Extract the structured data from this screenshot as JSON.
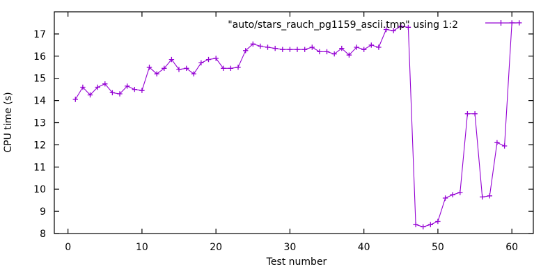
{
  "figure": {
    "background": "#ffffff",
    "border_color": "#000000",
    "text_color": "#000000",
    "accent_color": "#9400d3"
  },
  "chart_data": {
    "type": "line",
    "title": "\"auto/stars_rauch_pg1159_ascii.tmp\" using 1:2",
    "xlabel": "Test number",
    "ylabel": "CPU time (s)",
    "legend_position": "top-right-inside",
    "grid": false,
    "marker": "plus",
    "line_color": "#9400d3",
    "xlim": [
      -1.85,
      62.9
    ],
    "ylim": [
      8,
      18
    ],
    "x_ticks": [
      0,
      10,
      20,
      30,
      40,
      50,
      60
    ],
    "y_ticks": [
      8,
      9,
      10,
      11,
      12,
      13,
      14,
      15,
      16,
      17
    ],
    "x": [
      1,
      2,
      3,
      4,
      5,
      6,
      7,
      8,
      9,
      10,
      11,
      12,
      13,
      14,
      15,
      16,
      17,
      18,
      19,
      20,
      21,
      22,
      23,
      24,
      25,
      26,
      27,
      28,
      29,
      30,
      31,
      32,
      33,
      34,
      35,
      36,
      37,
      38,
      39,
      40,
      41,
      42,
      43,
      44,
      45,
      46,
      47,
      48,
      49,
      50,
      51,
      52,
      53,
      54,
      55,
      56,
      57,
      58,
      59,
      60,
      61
    ],
    "y": [
      14.05,
      14.6,
      14.25,
      14.6,
      14.75,
      14.35,
      14.3,
      14.65,
      14.5,
      14.45,
      15.5,
      15.2,
      15.45,
      15.85,
      15.4,
      15.45,
      15.2,
      15.7,
      15.85,
      15.9,
      15.45,
      15.45,
      15.5,
      16.25,
      16.55,
      16.45,
      16.4,
      16.35,
      16.3,
      16.3,
      16.3,
      16.3,
      16.4,
      16.2,
      16.2,
      16.1,
      16.35,
      16.05,
      16.4,
      16.3,
      16.5,
      16.4,
      17.2,
      17.15,
      17.35,
      17.3,
      8.4,
      8.3,
      8.4,
      8.55,
      9.6,
      9.75,
      9.85,
      13.4,
      13.4,
      9.65,
      9.7,
      12.1,
      11.95,
      17.5,
      17.5
    ]
  }
}
